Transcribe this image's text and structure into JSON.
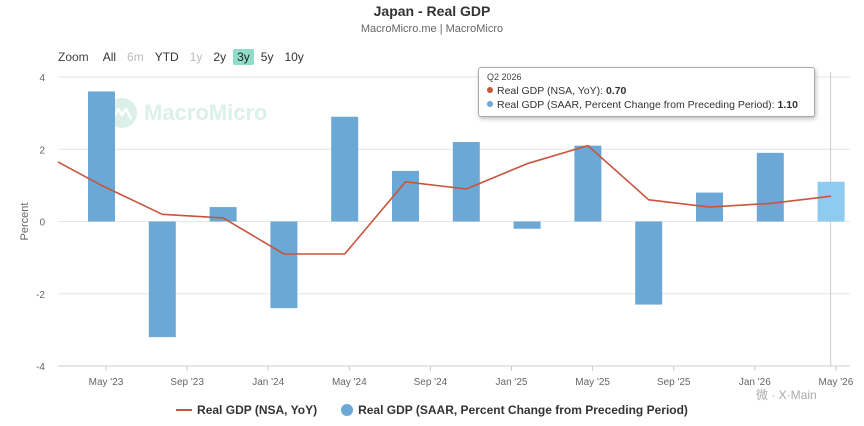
{
  "header": {
    "title": "Japan - Real GDP",
    "subtitle": "MacroMicro.me | MacroMicro"
  },
  "zoom": {
    "label": "Zoom",
    "buttons": [
      {
        "label": "All",
        "state": "normal"
      },
      {
        "label": "6m",
        "state": "disabled"
      },
      {
        "label": "YTD",
        "state": "normal"
      },
      {
        "label": "1y",
        "state": "disabled"
      },
      {
        "label": "2y",
        "state": "normal"
      },
      {
        "label": "3y",
        "state": "active"
      },
      {
        "label": "5y",
        "state": "normal"
      },
      {
        "label": "10y",
        "state": "normal"
      }
    ]
  },
  "watermark": {
    "text": "MacroMicro"
  },
  "corner_mark": {
    "text": "微 · X·Main"
  },
  "tooltip": {
    "period": "Q2 2026",
    "rows": [
      {
        "label": "Real GDP (NSA, YoY): ",
        "value": "0.70",
        "color": "#c8553d"
      },
      {
        "label": "Real GDP (SAAR, Percent Change from Preceding Period): ",
        "value": "1.10",
        "color": "#6ba8d6"
      }
    ]
  },
  "chart_data": {
    "type": "bar",
    "ylabel": "Percent",
    "ylim": [
      -4,
      4
    ],
    "yticks": [
      "4",
      "2",
      "0",
      "-2",
      "-4"
    ],
    "x_tick_labels": [
      "May '23",
      "Sep '23",
      "Jan '24",
      "May '24",
      "Sep '24",
      "Jan '25",
      "May '25",
      "Sep '25",
      "Jan '26",
      "May '26"
    ],
    "categories": [
      "Q2 2023",
      "Q3 2023",
      "Q4 2023",
      "Q1 2024",
      "Q2 2024",
      "Q3 2024",
      "Q4 2024",
      "Q1 2025",
      "Q2 2025",
      "Q3 2025",
      "Q4 2025",
      "Q1 2026",
      "Q2 2026"
    ],
    "series": [
      {
        "name": "Real GDP (SAAR, Percent Change from Preceding Period)",
        "type": "bar",
        "color": "#6ba8d6",
        "highlight_color": "#8ecbf0",
        "values": [
          3.6,
          -3.2,
          0.4,
          -2.4,
          2.9,
          1.4,
          2.2,
          -0.2,
          2.1,
          -2.3,
          0.8,
          1.9,
          1.1
        ]
      },
      {
        "name": "Real GDP (NSA, YoY)",
        "type": "line",
        "color": "#c8553d",
        "start_value": 1.65,
        "values": [
          1.0,
          0.2,
          0.1,
          -0.9,
          -0.9,
          1.1,
          0.9,
          1.6,
          2.1,
          0.6,
          0.4,
          0.5,
          0.7
        ]
      }
    ],
    "grid": true,
    "legend": "bottom-center"
  }
}
